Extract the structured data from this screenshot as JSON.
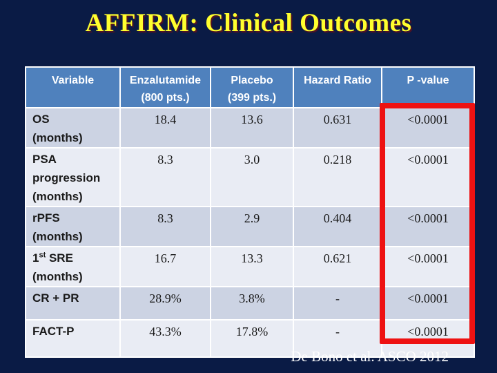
{
  "slide": {
    "title": "AFFIRM: Clinical Outcomes",
    "citation": "De Bono et al. ASCO 2012"
  },
  "colors": {
    "background": "#0A1B45",
    "header_bg": "#4F81BD",
    "header_text": "#FFFFFF",
    "band_dark": "#CCD3E3",
    "band_light": "#E9ECF4",
    "cell_text": "#1A1A1A",
    "highlight_border": "#EE1212",
    "title_color": "#FFFF2E",
    "citation_text": "#FFFFFF"
  },
  "table": {
    "columns": [
      {
        "lines": [
          "Variable"
        ]
      },
      {
        "lines": [
          "Enzalutamide",
          "(800 pts.)"
        ]
      },
      {
        "lines": [
          "Placebo",
          "(399 pts.)"
        ]
      },
      {
        "lines": [
          "Hazard Ratio"
        ]
      },
      {
        "lines": [
          "P -value"
        ]
      }
    ],
    "rows": [
      {
        "label_lines": [
          [
            {
              "text": "OS"
            }
          ],
          [
            {
              "text": "(months)"
            }
          ]
        ],
        "values": [
          "18.4",
          "13.6",
          "0.631",
          "<0.0001"
        ]
      },
      {
        "label_lines": [
          [
            {
              "text": "PSA"
            }
          ],
          [
            {
              "text": "progression"
            }
          ],
          [
            {
              "text": "(months)"
            }
          ]
        ],
        "values": [
          "8.3",
          "3.0",
          "0.218",
          "<0.0001"
        ]
      },
      {
        "label_lines": [
          [
            {
              "text": "rPFS"
            }
          ],
          [
            {
              "text": "(months)"
            }
          ]
        ],
        "values": [
          "8.3",
          "2.9",
          "0.404",
          "<0.0001"
        ]
      },
      {
        "label_lines": [
          [
            {
              "text": "1"
            },
            {
              "text": "st",
              "sup": true
            },
            {
              "text": " SRE"
            }
          ],
          [
            {
              "text": "(months)"
            }
          ]
        ],
        "values": [
          "16.7",
          "13.3",
          "0.621",
          "<0.0001"
        ]
      },
      {
        "label_lines": [
          [
            {
              "text": "CR + PR"
            }
          ]
        ],
        "values": [
          "28.9%",
          "3.8%",
          "-",
          "<0.0001"
        ]
      },
      {
        "label_lines": [
          [
            {
              "text": "FACT-P"
            }
          ]
        ],
        "values": [
          "43.3%",
          "17.8%",
          "-",
          "<0.0001"
        ]
      }
    ]
  },
  "chart_data": {
    "type": "table",
    "title": "AFFIRM: Clinical Outcomes",
    "columns": [
      "Variable",
      "Enzalutamide (800 pts.)",
      "Placebo (399 pts.)",
      "Hazard Ratio",
      "P -value"
    ],
    "rows": [
      [
        "OS (months)",
        "18.4",
        "13.6",
        "0.631",
        "<0.0001"
      ],
      [
        "PSA progression (months)",
        "8.3",
        "3.0",
        "0.218",
        "<0.0001"
      ],
      [
        "rPFS (months)",
        "8.3",
        "2.9",
        "0.404",
        "<0.0001"
      ],
      [
        "1st SRE (months)",
        "16.7",
        "13.3",
        "0.621",
        "<0.0001"
      ],
      [
        "CR + PR",
        "28.9%",
        "3.8%",
        "-",
        "<0.0001"
      ],
      [
        "FACT-P",
        "43.3%",
        "17.8%",
        "-",
        "<0.0001"
      ]
    ],
    "annotations": [
      "P -value column highlighted with red rectangle"
    ],
    "source_note": "De Bono et al. ASCO 2012"
  }
}
